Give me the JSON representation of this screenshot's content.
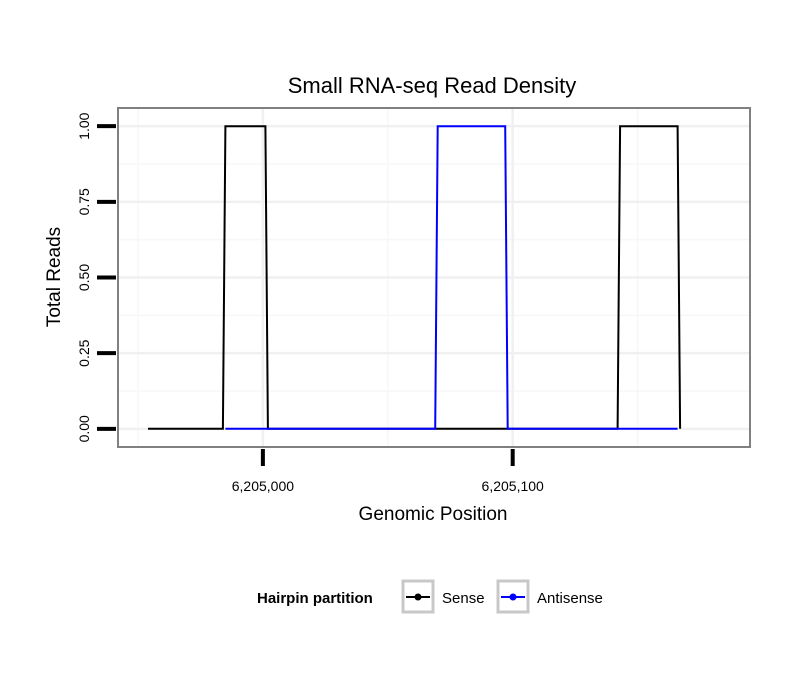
{
  "chart_data": {
    "type": "line",
    "title": "Small RNA-seq Read Density",
    "xlabel": "Genomic Position",
    "ylabel": "Total Reads",
    "xlim": [
      6204942,
      6205195
    ],
    "ylim": [
      -0.06,
      1.06
    ],
    "x_ticks": [
      {
        "value": 6205000,
        "label": "6,205,000"
      },
      {
        "value": 6205100,
        "label": "6,205,100"
      }
    ],
    "y_ticks": [
      {
        "value": 0,
        "label": "0.00"
      },
      {
        "value": 0.25,
        "label": "0.25"
      },
      {
        "value": 0.5,
        "label": "0.50"
      },
      {
        "value": 0.75,
        "label": "0.75"
      },
      {
        "value": 1,
        "label": "1.00"
      }
    ],
    "grid": true,
    "legend": {
      "title": "Hairpin partition",
      "position": "bottom",
      "entries": [
        {
          "name": "Sense",
          "color": "#000000"
        },
        {
          "name": "Antisense",
          "color": "#0000ff"
        }
      ]
    },
    "series": [
      {
        "name": "Sense",
        "color": "#000000",
        "x": [
          6204954,
          6204984,
          6204985,
          6205001,
          6205002,
          6205055,
          6205056,
          6205085,
          6205086,
          6205142,
          6205143,
          6205166,
          6205167
        ],
        "y": [
          0,
          0,
          1,
          1,
          0,
          0,
          0,
          0,
          0,
          0,
          1,
          1,
          0
        ]
      },
      {
        "name": "Antisense",
        "color": "#0000ff",
        "x": [
          6204985,
          6205002,
          6205069,
          6205070,
          6205097,
          6205098,
          6205142,
          6205166
        ],
        "y": [
          0,
          0,
          0,
          1,
          1,
          0,
          0,
          0
        ]
      }
    ]
  }
}
